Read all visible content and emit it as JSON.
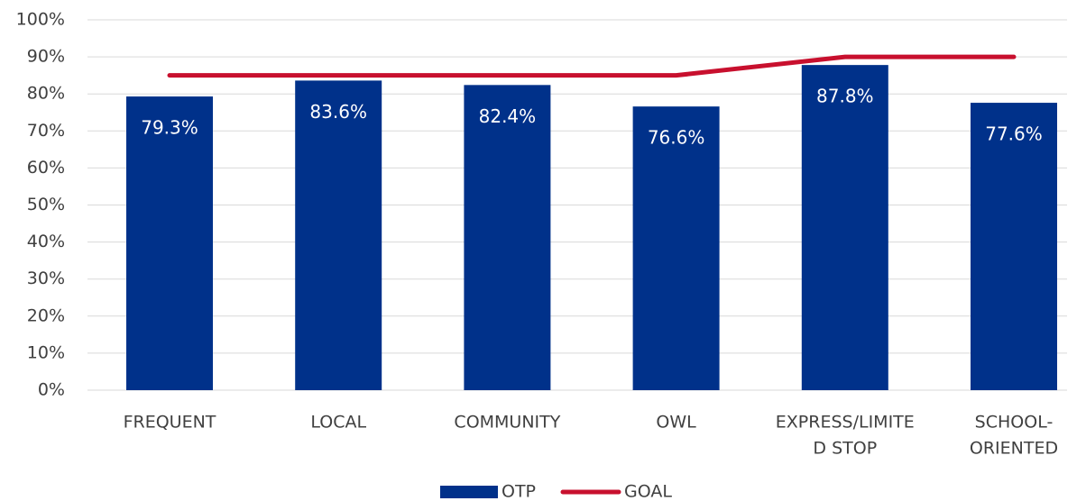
{
  "chart_data": {
    "type": "bar",
    "categories": [
      "FREQUENT",
      "LOCAL",
      "COMMUNITY",
      "OWL",
      [
        "EXPRESS/LIMITE",
        "D STOP"
      ],
      [
        "SCHOOL-",
        "ORIENTED"
      ]
    ],
    "series": [
      {
        "name": "OTP",
        "type": "bar",
        "color": "#00318a",
        "values": [
          79.3,
          83.6,
          82.4,
          76.6,
          87.8,
          77.6
        ],
        "value_labels": [
          "79.3%",
          "83.6%",
          "82.4%",
          "76.6%",
          "87.8%",
          "77.6%"
        ]
      },
      {
        "name": "GOAL",
        "type": "line",
        "color": "#c8102e",
        "values": [
          85,
          85,
          85,
          85,
          90,
          90
        ]
      }
    ],
    "ylim": [
      0,
      100
    ],
    "yticks": [
      {
        "value": 0,
        "label": "0%"
      },
      {
        "value": 10,
        "label": "10%"
      },
      {
        "value": 20,
        "label": "20%"
      },
      {
        "value": 30,
        "label": "30%"
      },
      {
        "value": 40,
        "label": "40%"
      },
      {
        "value": 50,
        "label": "50%"
      },
      {
        "value": 60,
        "label": "60%"
      },
      {
        "value": 70,
        "label": "70%"
      },
      {
        "value": 80,
        "label": "80%"
      },
      {
        "value": 90,
        "label": "90%"
      },
      {
        "value": 100,
        "label": "100%"
      }
    ],
    "grid": true,
    "legend": "bottom"
  }
}
